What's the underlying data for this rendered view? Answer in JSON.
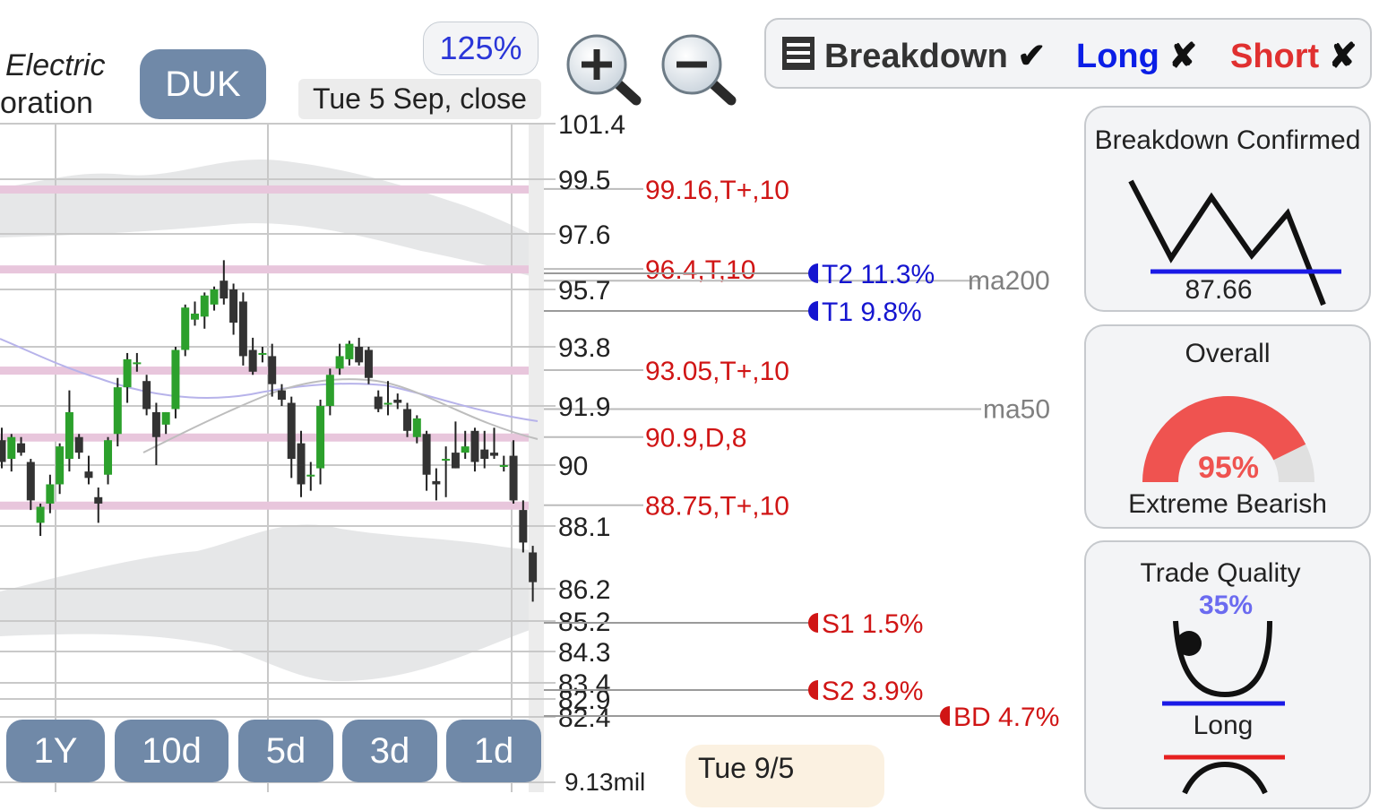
{
  "header": {
    "company_line1": "Electric",
    "company_line2": "oration",
    "ticker": "DUK",
    "zoom_level": "125%",
    "date_label": "Tue 5 Sep, close"
  },
  "filters": {
    "breakdown_label": "Breakdown",
    "breakdown_mark": "✔",
    "long_label": "Long",
    "long_mark": "✘",
    "short_label": "Short",
    "short_mark": "✘",
    "colors": {
      "breakdown": "#333333",
      "long": "#0a1ee6",
      "short": "#e03030"
    }
  },
  "icons": [
    "zoom-in-icon",
    "zoom-out-icon",
    "list-icon"
  ],
  "panels": {
    "pattern": {
      "title": "Breakdown Confirmed",
      "level": "87.66"
    },
    "overall": {
      "title": "Overall",
      "value": "95%",
      "fraction": 0.95,
      "sentiment": "Extreme Bearish",
      "color": "#ef5350"
    },
    "quality": {
      "title": "Trade Quality",
      "value": "35%",
      "label": "Long",
      "color": "#6b6bf0"
    }
  },
  "periods": [
    "1Y",
    "10d",
    "5d",
    "3d",
    "1d"
  ],
  "footer": {
    "day_label": "Tue 9/5",
    "volume_label": "9.13mil"
  },
  "chart_data": {
    "type": "candlestick",
    "y_ticks": [
      "101.4",
      "99.5",
      "97.6",
      "95.7",
      "93.8",
      "91.9",
      "90",
      "88.1",
      "86.2",
      "85.2",
      "84.3",
      "83.4",
      "82.9",
      "82.4"
    ],
    "ylim": [
      82.4,
      101.4
    ],
    "resistance_levels": [
      {
        "price": 99.16,
        "label": "99.16,T+,10"
      },
      {
        "price": 96.4,
        "label": "96.4,T,10"
      },
      {
        "price": 93.05,
        "label": "93.05,T+,10"
      },
      {
        "price": 90.9,
        "label": "90.9,D,8"
      },
      {
        "price": 88.75,
        "label": "88.75,T+,10"
      }
    ],
    "moving_averages": [
      {
        "name": "ma200",
        "value": 96.0
      },
      {
        "name": "ma50",
        "value": 91.8
      }
    ],
    "targets": [
      {
        "label": "T2 11.3%",
        "price": 96.1,
        "color": "#1515d0"
      },
      {
        "label": "T1 9.8%",
        "price": 95.0,
        "color": "#1515d0"
      },
      {
        "label": "S1 1.5%",
        "price": 85.2,
        "color": "#d01515"
      },
      {
        "label": "S2 3.9%",
        "price": 83.2,
        "color": "#d01515"
      },
      {
        "label": "BD 4.7%",
        "price": 82.4,
        "color": "#d01515"
      }
    ],
    "candles": [
      {
        "o": 90.8,
        "h": 91.2,
        "l": 89.9,
        "c": 90.1
      },
      {
        "o": 90.2,
        "h": 91.0,
        "l": 89.8,
        "c": 90.9
      },
      {
        "o": 90.7,
        "h": 90.9,
        "l": 90.3,
        "c": 90.4
      },
      {
        "o": 90.1,
        "h": 90.2,
        "l": 88.6,
        "c": 88.9
      },
      {
        "o": 88.2,
        "h": 88.8,
        "l": 87.8,
        "c": 88.7
      },
      {
        "o": 88.8,
        "h": 89.7,
        "l": 88.5,
        "c": 89.4
      },
      {
        "o": 89.4,
        "h": 90.7,
        "l": 89.1,
        "c": 90.6
      },
      {
        "o": 90.2,
        "h": 92.4,
        "l": 89.8,
        "c": 91.7
      },
      {
        "o": 90.9,
        "h": 91.0,
        "l": 90.2,
        "c": 90.4
      },
      {
        "o": 89.8,
        "h": 90.3,
        "l": 89.4,
        "c": 89.6
      },
      {
        "o": 89.0,
        "h": 89.3,
        "l": 88.2,
        "c": 88.8
      },
      {
        "o": 89.7,
        "h": 90.9,
        "l": 89.4,
        "c": 90.8
      },
      {
        "o": 91.0,
        "h": 92.8,
        "l": 90.6,
        "c": 92.5
      },
      {
        "o": 92.5,
        "h": 93.6,
        "l": 92.0,
        "c": 93.4
      },
      {
        "o": 93.3,
        "h": 93.6,
        "l": 93.0,
        "c": 93.3
      },
      {
        "o": 92.7,
        "h": 92.9,
        "l": 91.6,
        "c": 91.8
      },
      {
        "o": 91.7,
        "h": 92.0,
        "l": 90.0,
        "c": 90.9
      },
      {
        "o": 91.3,
        "h": 91.7,
        "l": 91.0,
        "c": 91.7
      },
      {
        "o": 91.8,
        "h": 93.8,
        "l": 91.5,
        "c": 93.7
      },
      {
        "o": 93.7,
        "h": 95.2,
        "l": 93.5,
        "c": 95.1
      },
      {
        "o": 94.7,
        "h": 95.3,
        "l": 94.5,
        "c": 94.9
      },
      {
        "o": 94.8,
        "h": 95.6,
        "l": 94.4,
        "c": 95.5
      },
      {
        "o": 95.2,
        "h": 95.8,
        "l": 95.0,
        "c": 95.7
      },
      {
        "o": 96.0,
        "h": 96.7,
        "l": 95.2,
        "c": 95.4
      },
      {
        "o": 95.7,
        "h": 95.9,
        "l": 94.2,
        "c": 94.6
      },
      {
        "o": 95.3,
        "h": 95.6,
        "l": 93.2,
        "c": 93.5
      },
      {
        "o": 93.7,
        "h": 94.1,
        "l": 92.9,
        "c": 93.0
      },
      {
        "o": 93.6,
        "h": 93.8,
        "l": 93.3,
        "c": 93.6
      },
      {
        "o": 93.5,
        "h": 93.9,
        "l": 92.2,
        "c": 92.6
      },
      {
        "o": 92.4,
        "h": 92.6,
        "l": 91.9,
        "c": 92.1
      },
      {
        "o": 92.0,
        "h": 92.2,
        "l": 89.6,
        "c": 90.2
      },
      {
        "o": 90.7,
        "h": 91.1,
        "l": 89.0,
        "c": 89.4
      },
      {
        "o": 89.7,
        "h": 90.1,
        "l": 89.2,
        "c": 89.7
      },
      {
        "o": 89.9,
        "h": 92.1,
        "l": 89.4,
        "c": 91.9
      },
      {
        "o": 91.9,
        "h": 93.1,
        "l": 91.6,
        "c": 92.9
      },
      {
        "o": 93.1,
        "h": 93.9,
        "l": 92.9,
        "c": 93.5
      },
      {
        "o": 93.4,
        "h": 94.0,
        "l": 93.2,
        "c": 93.9
      },
      {
        "o": 93.8,
        "h": 94.1,
        "l": 93.2,
        "c": 93.3
      },
      {
        "o": 93.7,
        "h": 93.8,
        "l": 92.6,
        "c": 92.8
      },
      {
        "o": 92.2,
        "h": 92.4,
        "l": 91.7,
        "c": 91.8
      },
      {
        "o": 92.0,
        "h": 92.7,
        "l": 91.6,
        "c": 92.0
      },
      {
        "o": 92.1,
        "h": 92.3,
        "l": 91.8,
        "c": 92.0
      },
      {
        "o": 91.8,
        "h": 92.0,
        "l": 90.9,
        "c": 91.1
      },
      {
        "o": 90.9,
        "h": 91.6,
        "l": 90.7,
        "c": 91.5
      },
      {
        "o": 91.0,
        "h": 91.1,
        "l": 89.2,
        "c": 89.7
      },
      {
        "o": 89.5,
        "h": 89.9,
        "l": 88.9,
        "c": 89.4
      },
      {
        "o": 90.2,
        "h": 90.6,
        "l": 89.0,
        "c": 90.2
      },
      {
        "o": 90.4,
        "h": 91.4,
        "l": 89.9,
        "c": 89.9
      },
      {
        "o": 90.4,
        "h": 91.1,
        "l": 90.2,
        "c": 90.6
      },
      {
        "o": 91.1,
        "h": 91.2,
        "l": 89.8,
        "c": 90.1
      },
      {
        "o": 90.5,
        "h": 91.1,
        "l": 89.9,
        "c": 90.2
      },
      {
        "o": 90.4,
        "h": 91.2,
        "l": 90.2,
        "c": 90.3
      },
      {
        "o": 90.0,
        "h": 90.3,
        "l": 89.8,
        "c": 90.0
      },
      {
        "o": 90.3,
        "h": 90.8,
        "l": 88.8,
        "c": 88.9
      },
      {
        "o": 88.6,
        "h": 88.9,
        "l": 87.3,
        "c": 87.6
      },
      {
        "o": 87.3,
        "h": 87.5,
        "l": 85.8,
        "c": 86.4
      }
    ]
  }
}
